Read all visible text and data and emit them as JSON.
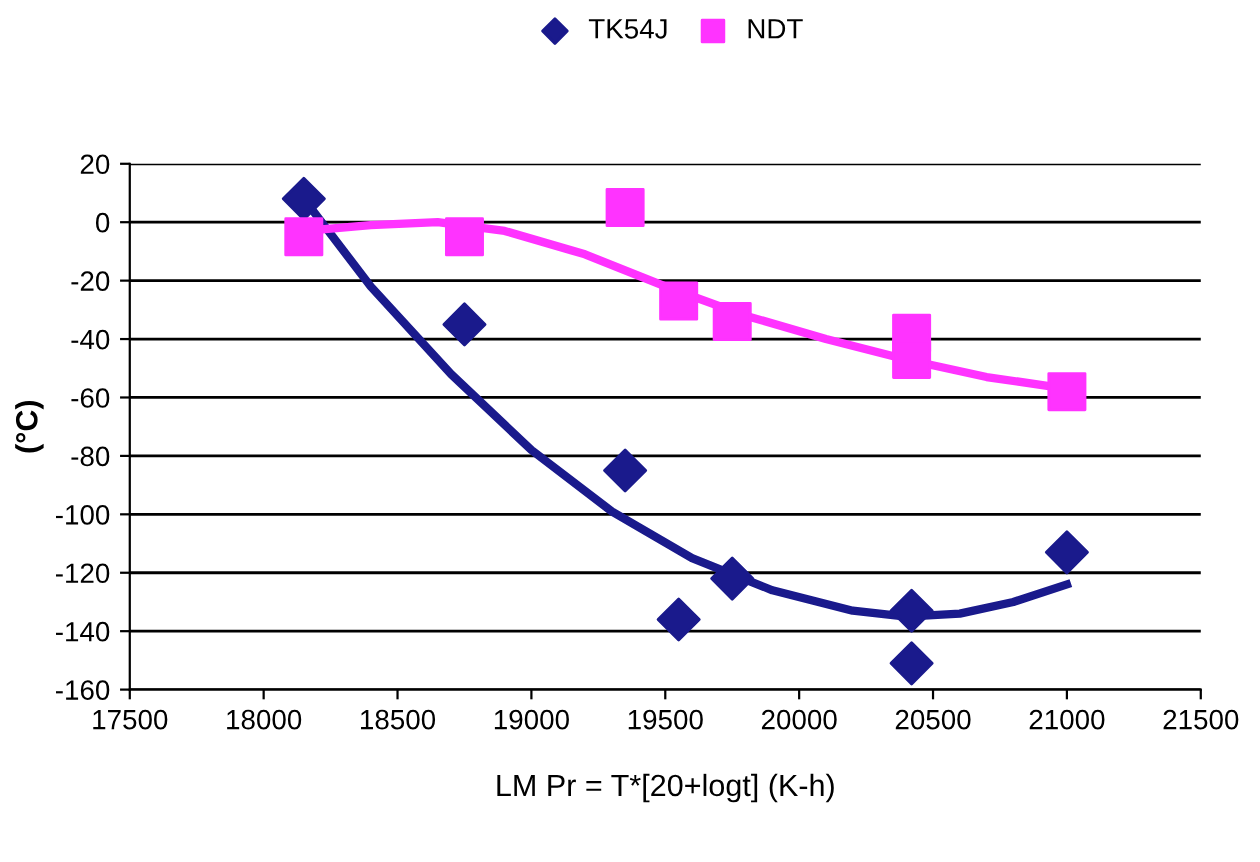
{
  "chart_data": {
    "type": "scatter",
    "xlabel": "LM Pr = T*[20+logt] (K-h)",
    "ylabel": "(°C)",
    "xlim": [
      17500,
      21500
    ],
    "xticks": [
      17500,
      18000,
      18500,
      19000,
      19500,
      20000,
      20500,
      21000,
      21500
    ],
    "ylim": [
      -160,
      20
    ],
    "yticks": [
      -160,
      -140,
      -120,
      -100,
      -80,
      -60,
      -40,
      -20,
      0,
      20
    ],
    "grid": "y",
    "legend": "top",
    "series": [
      {
        "name": "TK54J",
        "color": "#1a1a8c",
        "marker": "diamond",
        "x": [
          18150,
          18750,
          19350,
          19550,
          19750,
          20420,
          20420,
          21000
        ],
        "values": [
          8,
          -35,
          -85,
          -136,
          -122,
          -133,
          -151,
          -113
        ]
      },
      {
        "name": "NDT",
        "color": "#ff33ff",
        "marker": "square",
        "x": [
          18150,
          18750,
          19350,
          19550,
          19750,
          20420,
          20420,
          21000
        ],
        "values": [
          -5,
          -5,
          5,
          -27,
          -34,
          -38,
          -47,
          -58
        ]
      },
      {
        "type": "line",
        "color": "#1a1a8c",
        "x": [
          18150,
          18400,
          18700,
          19000,
          19300,
          19600,
          19900,
          20200,
          20400,
          20600,
          20800,
          21000
        ],
        "values": [
          8,
          -22,
          -52,
          -78,
          -99,
          -115,
          -126,
          -133,
          -135,
          -134,
          -130,
          -124
        ]
      },
      {
        "type": "line",
        "color": "#ff33ff",
        "x": [
          18150,
          18400,
          18650,
          18900,
          19200,
          19500,
          19800,
          20100,
          20400,
          20700,
          21000
        ],
        "values": [
          -3,
          -1,
          0,
          -3,
          -11,
          -22,
          -32,
          -40,
          -47,
          -53,
          -57
        ]
      }
    ]
  }
}
